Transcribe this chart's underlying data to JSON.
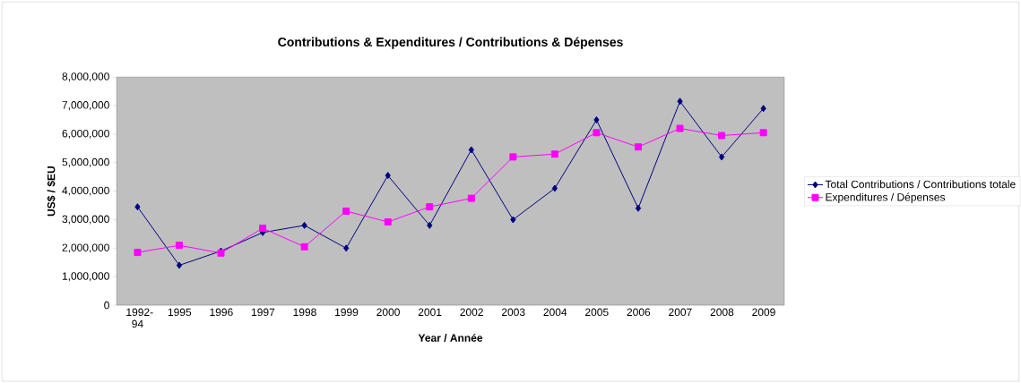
{
  "chart_data": {
    "type": "line",
    "title": "Contributions & Expenditures / Contributions & Dépenses",
    "xlabel": "Year / Année",
    "ylabel": "US$ / $EU",
    "categories": [
      "1992-94",
      "1995",
      "1996",
      "1997",
      "1998",
      "1999",
      "2000",
      "2001",
      "2002",
      "2003",
      "2004",
      "2005",
      "2006",
      "2007",
      "2008",
      "2009"
    ],
    "series": [
      {
        "name": "Total Contributions / Contributions totale",
        "color": "#000080",
        "marker": "diamond",
        "values": [
          3450000,
          1400000,
          1900000,
          2550000,
          2800000,
          2000000,
          4550000,
          2800000,
          5450000,
          3000000,
          4100000,
          6500000,
          3400000,
          7150000,
          5200000,
          6900000
        ]
      },
      {
        "name": "Expenditures / Dépenses",
        "color": "#ff00ff",
        "marker": "square",
        "values": [
          1850000,
          2100000,
          1830000,
          2700000,
          2050000,
          3300000,
          2920000,
          3450000,
          3750000,
          5200000,
          5300000,
          6050000,
          5550000,
          6200000,
          5950000,
          6050000
        ]
      }
    ],
    "ylim": [
      0,
      8000000
    ],
    "yticks": [
      {
        "value": 0,
        "label": "0"
      },
      {
        "value": 1000000,
        "label": "1,000,000"
      },
      {
        "value": 2000000,
        "label": "2,000,000"
      },
      {
        "value": 3000000,
        "label": "3,000,000"
      },
      {
        "value": 4000000,
        "label": "4,000,000"
      },
      {
        "value": 5000000,
        "label": "5,000,000"
      },
      {
        "value": 6000000,
        "label": "6,000,000"
      },
      {
        "value": 7000000,
        "label": "7,000,000"
      },
      {
        "value": 8000000,
        "label": "8,000,000"
      }
    ],
    "grid": false,
    "legend": "right",
    "line_style": "solid"
  }
}
